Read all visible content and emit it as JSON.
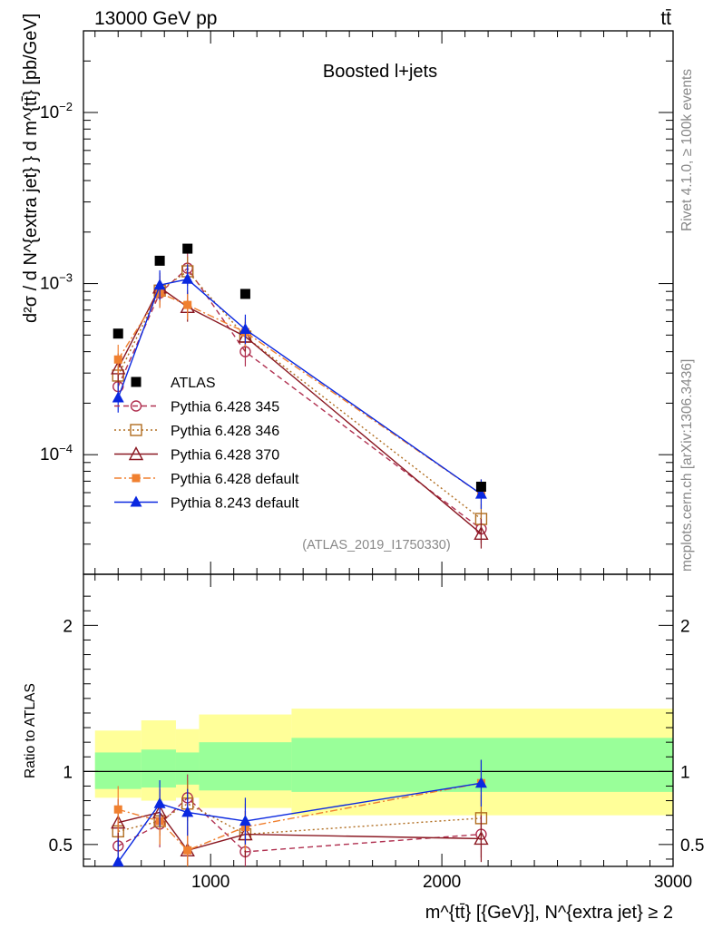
{
  "header": {
    "left": "13000 GeV pp",
    "right": "tt̄"
  },
  "side_labels": {
    "rivet": "Rivet 4.1.0, ≥ 100k events",
    "mcplots": "mcplots.cern.ch [arXiv:1306.3436]"
  },
  "chart_data": {
    "type": "line",
    "title": "Boosted l+jets",
    "watermark": "(ATLAS_2019_I1750330)",
    "xlabel": "m^{tt̄} [{GeV}], N^{extra jet} ≥ 2",
    "ylabel": "d²σ / d N^{extra jet} } d m^{tt̄} [pb/GeV]",
    "ratio_ylabel": "Ratio to ATLAS",
    "xlim": [
      450,
      3000
    ],
    "ylim": [
      2e-05,
      0.03
    ],
    "yscale": "log",
    "ratio_ylim": [
      0.35,
      2.35
    ],
    "x_ticks": [
      "1000",
      "2000",
      "3000"
    ],
    "y_ticks": [
      "10^-4",
      "10^-3",
      "10^-2"
    ],
    "ratio_ticks": [
      "0.5",
      "1",
      "2"
    ],
    "x": [
      600,
      780,
      900,
      1150,
      2170
    ],
    "x_edges": [
      500,
      700,
      850,
      950,
      1350,
      3000
    ],
    "atlas": [
      0.00051,
      0.00136,
      0.0016,
      0.00087,
      6.5e-05
    ],
    "band_green": [
      [
        0.88,
        1.13
      ],
      [
        0.89,
        1.15
      ],
      [
        0.91,
        1.13
      ],
      [
        0.87,
        1.2
      ],
      [
        0.86,
        1.23
      ]
    ],
    "band_yellow": [
      [
        0.82,
        1.28
      ],
      [
        0.8,
        1.35
      ],
      [
        0.82,
        1.29
      ],
      [
        0.75,
        1.39
      ],
      [
        0.7,
        1.43
      ]
    ],
    "series": [
      {
        "name": "Pythia 6.428 345",
        "color": "#b03050",
        "dash": "6,4",
        "marker": "circle-open",
        "values": [
          0.00025,
          0.00088,
          0.00123,
          0.0004,
          3.68e-05
        ],
        "ratio": [
          0.49,
          0.64,
          0.82,
          0.45,
          0.57
        ]
      },
      {
        "name": "Pythia 6.428 346",
        "color": "#b06d20",
        "dash": "2,3",
        "marker": "square-open",
        "values": [
          0.00029,
          0.00091,
          0.00118,
          0.00049,
          4.21e-05
        ],
        "ratio": [
          0.59,
          0.66,
          0.78,
          0.57,
          0.68
        ]
      },
      {
        "name": "Pythia 6.428 370",
        "color": "#8a1822",
        "dash": "",
        "marker": "triangle-open",
        "values": [
          0.00032,
          0.00095,
          0.00073,
          0.00049,
          3.45e-05
        ],
        "ratio": [
          0.65,
          0.72,
          0.46,
          0.57,
          0.54
        ]
      },
      {
        "name": "Pythia 6.428 default",
        "color": "#f08030",
        "dash": "8,3,2,3",
        "marker": "square",
        "values": [
          0.00036,
          0.00088,
          0.00075,
          0.00052,
          5.88e-05
        ],
        "ratio": [
          0.74,
          0.66,
          0.46,
          0.62,
          0.92
        ]
      },
      {
        "name": "Pythia 8.243 default",
        "color": "#0a28e0",
        "dash": "",
        "marker": "triangle",
        "values": [
          0.000215,
          0.00098,
          0.00106,
          0.00054,
          5.88e-05
        ],
        "ratio": [
          0.38,
          0.78,
          0.72,
          0.66,
          0.92
        ]
      }
    ],
    "legend_atlas": "ATLAS",
    "legend_position": "lower-left"
  }
}
